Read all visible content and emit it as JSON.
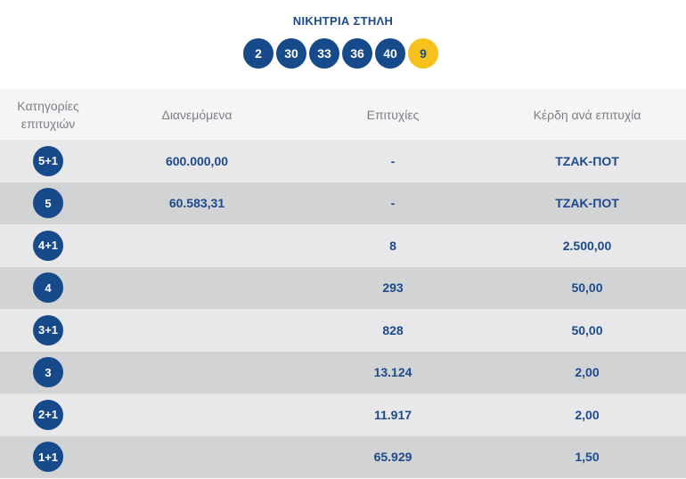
{
  "winning": {
    "title": "ΝΙΚΗΤΡΙΑ ΣΤΗΛΗ",
    "numbers": [
      "2",
      "30",
      "33",
      "36",
      "40"
    ],
    "bonus": "9"
  },
  "table": {
    "headers": {
      "categories_line1": "Κατηγορίες",
      "categories_line2": "επιτυχιών",
      "distributed": "Διανεμόμενα",
      "winners": "Επιτυχίες",
      "prize": "Κέρδη ανά επιτυχία"
    },
    "rows": [
      {
        "category": "5+1",
        "distributed": "600.000,00",
        "winners": "-",
        "prize": "ΤΖΑΚ-ΠΟΤ"
      },
      {
        "category": "5",
        "distributed": "60.583,31",
        "winners": "-",
        "prize": "ΤΖΑΚ-ΠΟΤ"
      },
      {
        "category": "4+1",
        "distributed": "",
        "winners": "8",
        "prize": "2.500,00"
      },
      {
        "category": "4",
        "distributed": "",
        "winners": "293",
        "prize": "50,00"
      },
      {
        "category": "3+1",
        "distributed": "",
        "winners": "828",
        "prize": "50,00"
      },
      {
        "category": "3",
        "distributed": "",
        "winners": "13.124",
        "prize": "2,00"
      },
      {
        "category": "2+1",
        "distributed": "",
        "winners": "11.917",
        "prize": "2,00"
      },
      {
        "category": "1+1",
        "distributed": "",
        "winners": "65.929",
        "prize": "1,50"
      }
    ]
  },
  "colors": {
    "primary_blue": "#174a8b",
    "bonus_yellow": "#f6c21b",
    "row_light": "#e8e8ea",
    "row_dark": "#d2d3d5"
  }
}
